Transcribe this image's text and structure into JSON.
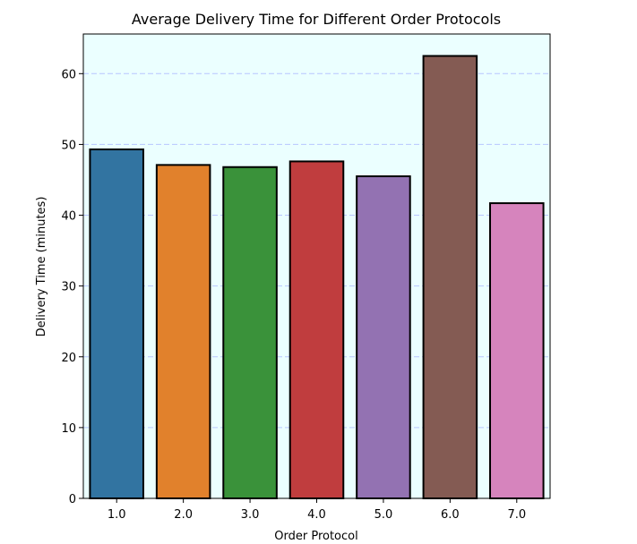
{
  "chart_data": {
    "type": "bar",
    "title": "Average Delivery Time for Different Order Protocols",
    "xlabel": "Order Protocol",
    "ylabel": "Delivery Time (minutes)",
    "categories": [
      "1.0",
      "2.0",
      "3.0",
      "4.0",
      "5.0",
      "6.0",
      "7.0"
    ],
    "values": [
      49.3,
      47.1,
      46.8,
      47.6,
      45.5,
      62.5,
      41.7
    ],
    "ylim": [
      0,
      65.6
    ],
    "yticks": [
      0,
      10,
      20,
      30,
      40,
      50,
      60
    ],
    "grid": "horizontal, dashed",
    "legend": "none",
    "colors": {
      "bars": [
        "#3274a1",
        "#e1812c",
        "#3a923a",
        "#c03d3e",
        "#9372b2",
        "#845b53",
        "#d684bd"
      ],
      "bar_edge": "#000000",
      "plot_background": "#ebffff",
      "grid": "#b8c6ff"
    }
  }
}
